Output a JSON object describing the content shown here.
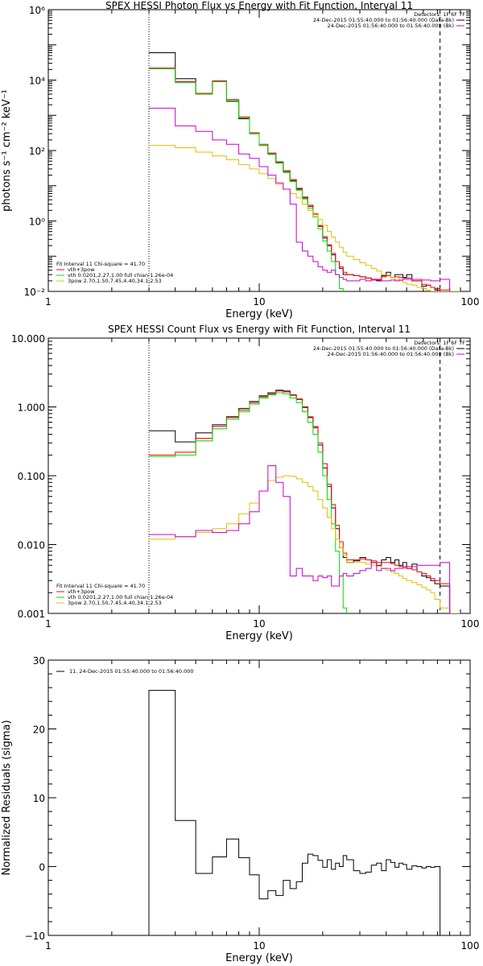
{
  "chart_data": [
    {
      "type": "line",
      "title": "SPEX HESSI Photon Flux vs Energy with Fit Function, Interval 11",
      "xlabel": "Energy (keV)",
      "ylabel": "photons s⁻¹ cm⁻² keV⁻¹",
      "x_scale": "log",
      "y_scale": "log",
      "xlim": [
        1,
        100
      ],
      "ylim": [
        0.01,
        1000000
      ],
      "x_ticks": [
        {
          "value": 1,
          "label": "1"
        },
        {
          "value": 10,
          "label": "10"
        },
        {
          "value": 100,
          "label": "100"
        }
      ],
      "y_ticks": [
        {
          "value": 0.01,
          "label": "10⁻²"
        },
        {
          "value": 1,
          "label": "10⁰"
        },
        {
          "value": 100,
          "label": "10²"
        },
        {
          "value": 10000,
          "label": "10⁴"
        },
        {
          "value": 1000000,
          "label": "10⁶"
        }
      ],
      "vlines": [
        {
          "x": 3.0,
          "style": "dotted",
          "color": "#000000"
        },
        {
          "x": 72.0,
          "style": "dashed",
          "color": "#000000"
        }
      ],
      "legend_top": [
        "Detectors: 1F 6F 7F",
        "24-Dec-2015 01:55:40.000 to 01:56:40.000 (Data-Bk)",
        "24-Dec-2015 01:56:40.000 to 01:56:40.000 (Bk)"
      ],
      "legend_bottom": [
        "Fit Interval 11    Chi-square = 41.70",
        "vth+3pow",
        "vth 0.0201,2.27,1.00  full chian 1.26e-04",
        "3pow 2.70,1.50,7.45,4.40,34.1,2.53"
      ],
      "bin_edges": [
        3,
        4,
        5,
        6,
        7,
        8,
        9,
        10,
        11,
        12,
        13,
        14,
        15,
        16,
        17,
        18,
        19,
        20,
        21,
        22,
        23,
        24,
        25,
        26,
        28,
        30,
        32,
        34,
        36,
        38,
        40,
        42,
        44,
        46,
        48,
        50,
        53,
        56,
        59,
        62,
        65,
        68,
        72,
        80,
        90
      ],
      "series": [
        {
          "name": "24-Dec-2015 01:55:40.000 to 01:56:40.000 (Data-Bk)",
          "color": "#000000",
          "values": [
            60000,
            11000,
            4000,
            9000,
            2500,
            800,
            300,
            140,
            80,
            45,
            25,
            14,
            8,
            4.5,
            2.6,
            1.5,
            0.7,
            0.33,
            0.2,
            0.11,
            0.07,
            0.045,
            0.03,
            0.03,
            0.028,
            0.026,
            0.024,
            0.022,
            0.02,
            0.028,
            0.035,
            0.025,
            0.03,
            0.03,
            0.025,
            0.03,
            0.02,
            0.02,
            0.014,
            0.015,
            0.013,
            0.011,
            0.01,
            null
          ]
        },
        {
          "name": "vth+3pow",
          "color": "#ff0000",
          "values": [
            22000,
            9000,
            4200,
            9500,
            2800,
            900,
            320,
            150,
            85,
            48,
            27,
            15,
            8.5,
            4.8,
            2.8,
            1.6,
            0.75,
            0.36,
            0.21,
            0.12,
            0.07,
            0.05,
            0.035,
            0.03,
            0.028,
            0.026,
            0.024,
            0.022,
            0.022,
            0.026,
            0.028,
            0.025,
            0.026,
            0.025,
            0.024,
            0.024,
            0.02,
            0.02,
            0.016,
            0.015,
            0.013,
            0.012,
            0.011,
            null
          ]
        },
        {
          "name": "vth 0.0201,2.27,1.00  full chian 1.26e-04",
          "color": "#00dd00",
          "values": [
            21000,
            8500,
            4000,
            9000,
            2600,
            850,
            300,
            140,
            78,
            44,
            24,
            13,
            7.5,
            4.2,
            2.3,
            1.3,
            0.6,
            0.27,
            0.14,
            0.07,
            0.03,
            0.012,
            null,
            null,
            null,
            null,
            null,
            null,
            null,
            null,
            null,
            null,
            null,
            null,
            null,
            null,
            null,
            null,
            null,
            null,
            null,
            null,
            null,
            null
          ]
        },
        {
          "name": "3pow 2.70,1.50,7.45,4.40,34.1,2.53",
          "color": "#e0c000",
          "values": [
            140,
            120,
            90,
            70,
            55,
            40,
            30,
            22,
            16,
            11,
            8,
            6,
            4.5,
            3,
            2,
            1.5,
            1.1,
            0.75,
            0.5,
            0.35,
            0.25,
            0.18,
            0.13,
            0.1,
            0.08,
            0.065,
            0.055,
            0.045,
            0.038,
            0.03,
            0.03,
            0.025,
            0.022,
            0.02,
            0.018,
            0.016,
            0.015,
            0.013,
            0.012,
            0.011,
            0.01,
            0.009,
            0.008,
            0.007
          ]
        },
        {
          "name": "24-Dec-2015 01:56:40.000 to 01:56:40.000 (Bk)",
          "color": "#cc00cc",
          "values": [
            1600,
            500,
            350,
            200,
            150,
            80,
            60,
            35,
            20,
            12,
            8,
            3,
            0.25,
            0.14,
            0.1,
            0.07,
            0.05,
            0.04,
            0.035,
            0.04,
            0.03,
            0.025,
            0.022,
            0.02,
            0.02,
            0.022,
            0.02,
            0.021,
            0.021,
            0.02,
            0.02,
            0.021,
            0.02,
            0.021,
            0.022,
            0.022,
            0.022,
            0.022,
            0.021,
            0.021,
            0.02,
            0.02,
            0.022,
            null
          ]
        }
      ]
    },
    {
      "type": "line",
      "title": "SPEX HESSI Count Flux vs Energy with Fit Function, Interval 11",
      "xlabel": "Energy (keV)",
      "ylabel": "",
      "x_scale": "log",
      "y_scale": "log",
      "xlim": [
        1,
        100
      ],
      "ylim": [
        0.001,
        10
      ],
      "x_ticks": [
        {
          "value": 1,
          "label": "1"
        },
        {
          "value": 10,
          "label": "10"
        },
        {
          "value": 100,
          "label": "100"
        }
      ],
      "y_ticks": [
        {
          "value": 0.001,
          "label": "0.001"
        },
        {
          "value": 0.01,
          "label": "0.010"
        },
        {
          "value": 0.1,
          "label": "0.100"
        },
        {
          "value": 1,
          "label": "1.000"
        },
        {
          "value": 10,
          "label": "10.000"
        }
      ],
      "vlines": [
        {
          "x": 3.0,
          "style": "dotted",
          "color": "#000000"
        },
        {
          "x": 72.0,
          "style": "dashed",
          "color": "#000000"
        }
      ],
      "legend_top": [
        "Detectors: 1F 6F 7F",
        "24-Dec-2015 01:55:40.000 to 01:56:40.000 (Data-Bk)",
        "24-Dec-2015 01:56:40.000 to 01:56:40.000 (Bk)"
      ],
      "legend_bottom": [
        "Fit Interval 11    Chi-square = 41.70",
        "vth+3pow",
        "vth 0.0201,2.27,1.00  full chian 1.26e-04",
        "3pow 2.70,1.50,7.45,4.40,34.1,2.53"
      ],
      "bin_edges": [
        3,
        4,
        5,
        6,
        7,
        8,
        9,
        10,
        11,
        12,
        13,
        14,
        15,
        16,
        17,
        18,
        19,
        20,
        21,
        22,
        23,
        24,
        25,
        26,
        28,
        30,
        32,
        34,
        36,
        38,
        40,
        42,
        44,
        46,
        48,
        50,
        53,
        56,
        59,
        62,
        65,
        68,
        72,
        80,
        90
      ],
      "series": [
        {
          "name": "24-Dec-2015 01:55:40.000 to 01:56:40.000 (Data-Bk)",
          "color": "#000000",
          "values": [
            0.45,
            0.31,
            0.42,
            0.55,
            0.72,
            0.95,
            1.2,
            1.45,
            1.6,
            1.75,
            1.7,
            1.5,
            1.3,
            1.0,
            0.7,
            0.5,
            0.28,
            0.13,
            0.07,
            0.034,
            0.017,
            0.009,
            0.0065,
            0.0055,
            0.0058,
            0.0065,
            0.006,
            0.0055,
            0.005,
            0.006,
            0.0065,
            0.0055,
            0.006,
            0.005,
            0.0055,
            0.0045,
            0.0052,
            0.004,
            0.0035,
            0.0033,
            0.003,
            0.0027,
            0.0025,
            null
          ]
        },
        {
          "name": "vth+3pow",
          "color": "#ff0000",
          "values": [
            0.2,
            0.22,
            0.35,
            0.52,
            0.7,
            0.9,
            1.15,
            1.4,
            1.55,
            1.7,
            1.65,
            1.48,
            1.28,
            0.98,
            0.72,
            0.52,
            0.3,
            0.15,
            0.075,
            0.038,
            0.019,
            0.011,
            0.0075,
            0.006,
            0.006,
            0.0062,
            0.006,
            0.0058,
            0.0055,
            0.0055,
            0.0055,
            0.0053,
            0.005,
            0.0048,
            0.0046,
            0.0045,
            0.0043,
            0.004,
            0.0038,
            0.0035,
            0.0032,
            0.003,
            0.0027,
            null
          ]
        },
        {
          "name": "vth 0.0201,2.27,1.00  full chian 1.26e-04",
          "color": "#00dd00",
          "values": [
            0.19,
            0.2,
            0.32,
            0.48,
            0.66,
            0.85,
            1.1,
            1.35,
            1.5,
            1.6,
            1.55,
            1.35,
            1.15,
            0.85,
            0.6,
            0.4,
            0.22,
            0.1,
            0.045,
            0.02,
            0.008,
            0.0035,
            0.0012,
            null,
            null,
            null,
            null,
            null,
            null,
            null,
            null,
            null,
            null,
            null,
            null,
            null,
            null,
            null,
            null,
            null,
            null,
            null,
            null,
            null
          ]
        },
        {
          "name": "3pow 2.70,1.50,7.45,4.40,34.1,2.53",
          "color": "#e0c000",
          "values": [
            0.012,
            0.013,
            0.015,
            0.017,
            0.02,
            0.028,
            0.04,
            0.06,
            0.085,
            0.095,
            0.1,
            0.098,
            0.09,
            0.08,
            0.07,
            0.06,
            0.045,
            0.034,
            0.025,
            0.017,
            0.012,
            0.009,
            0.007,
            0.0055,
            0.0055,
            0.0055,
            0.0052,
            0.005,
            0.0048,
            0.0045,
            0.0042,
            0.004,
            0.0038,
            0.0035,
            0.0032,
            0.003,
            0.0028,
            0.0026,
            0.0024,
            0.0022,
            0.002,
            0.0016,
            0.0012,
            0.001
          ]
        },
        {
          "name": "24-Dec-2015 01:56:40.000 to 01:56:40.000 (Bk)",
          "color": "#cc00cc",
          "values": [
            0.014,
            0.013,
            0.016,
            0.015,
            0.016,
            0.02,
            0.03,
            0.06,
            0.14,
            0.08,
            0.05,
            0.0035,
            0.0045,
            0.0035,
            0.0035,
            0.003,
            0.0035,
            0.0033,
            0.0035,
            0.0025,
            0.0025,
            0.0035,
            0.0038,
            0.0035,
            0.0038,
            0.0042,
            0.0045,
            0.0055,
            0.0042,
            0.0045,
            0.0045,
            0.0042,
            0.0045,
            0.0045,
            0.0048,
            0.0048,
            0.0048,
            0.005,
            0.005,
            0.005,
            0.005,
            0.005,
            0.0055,
            null
          ]
        }
      ]
    },
    {
      "type": "line",
      "title": "",
      "xlabel": "Energy (keV)",
      "ylabel": "Normalized Residuals (sigma)",
      "x_scale": "log",
      "y_scale": "linear",
      "xlim": [
        1,
        100
      ],
      "ylim": [
        -10,
        30
      ],
      "x_ticks": [
        {
          "value": 1,
          "label": "1"
        },
        {
          "value": 10,
          "label": "10"
        },
        {
          "value": 100,
          "label": "100"
        }
      ],
      "y_ticks": [
        {
          "value": -10,
          "label": "−10"
        },
        {
          "value": 0,
          "label": "0"
        },
        {
          "value": 10,
          "label": "10"
        },
        {
          "value": 20,
          "label": "20"
        },
        {
          "value": 30,
          "label": "30"
        }
      ],
      "legend_top": [
        "11. 24-Dec-2015 01:55:40.000 to 01:56:40.000"
      ],
      "bin_edges": [
        3,
        4,
        5,
        6,
        7,
        8,
        9,
        10,
        11,
        12,
        13,
        14,
        15,
        16,
        17,
        18,
        19,
        20,
        21,
        22,
        23,
        24,
        25,
        26,
        28,
        30,
        32,
        34,
        36,
        38,
        40,
        42,
        44,
        46,
        48,
        50,
        53,
        56,
        59,
        62,
        65,
        68,
        72
      ],
      "series": [
        {
          "name": "11. 24-Dec-2015 01:55:40.000 to 01:56:40.000",
          "color": "#000000",
          "values": [
            25.6,
            6.7,
            -1.0,
            1.4,
            4.0,
            1.3,
            -1.2,
            -4.7,
            -3.5,
            -4.2,
            -2.0,
            -3.2,
            -2.2,
            0.5,
            1.8,
            1.6,
            0.9,
            -0.1,
            1.0,
            -0.4,
            0.5,
            0.0,
            1.6,
            1.0,
            -0.6,
            -1.0,
            -0.8,
            0.2,
            0.5,
            -0.6,
            1.0,
            0.6,
            -0.1,
            0.5,
            0.3,
            -0.4,
            0.1,
            0.0,
            -0.2,
            0.0,
            -0.1,
            0.0
          ]
        }
      ]
    }
  ]
}
